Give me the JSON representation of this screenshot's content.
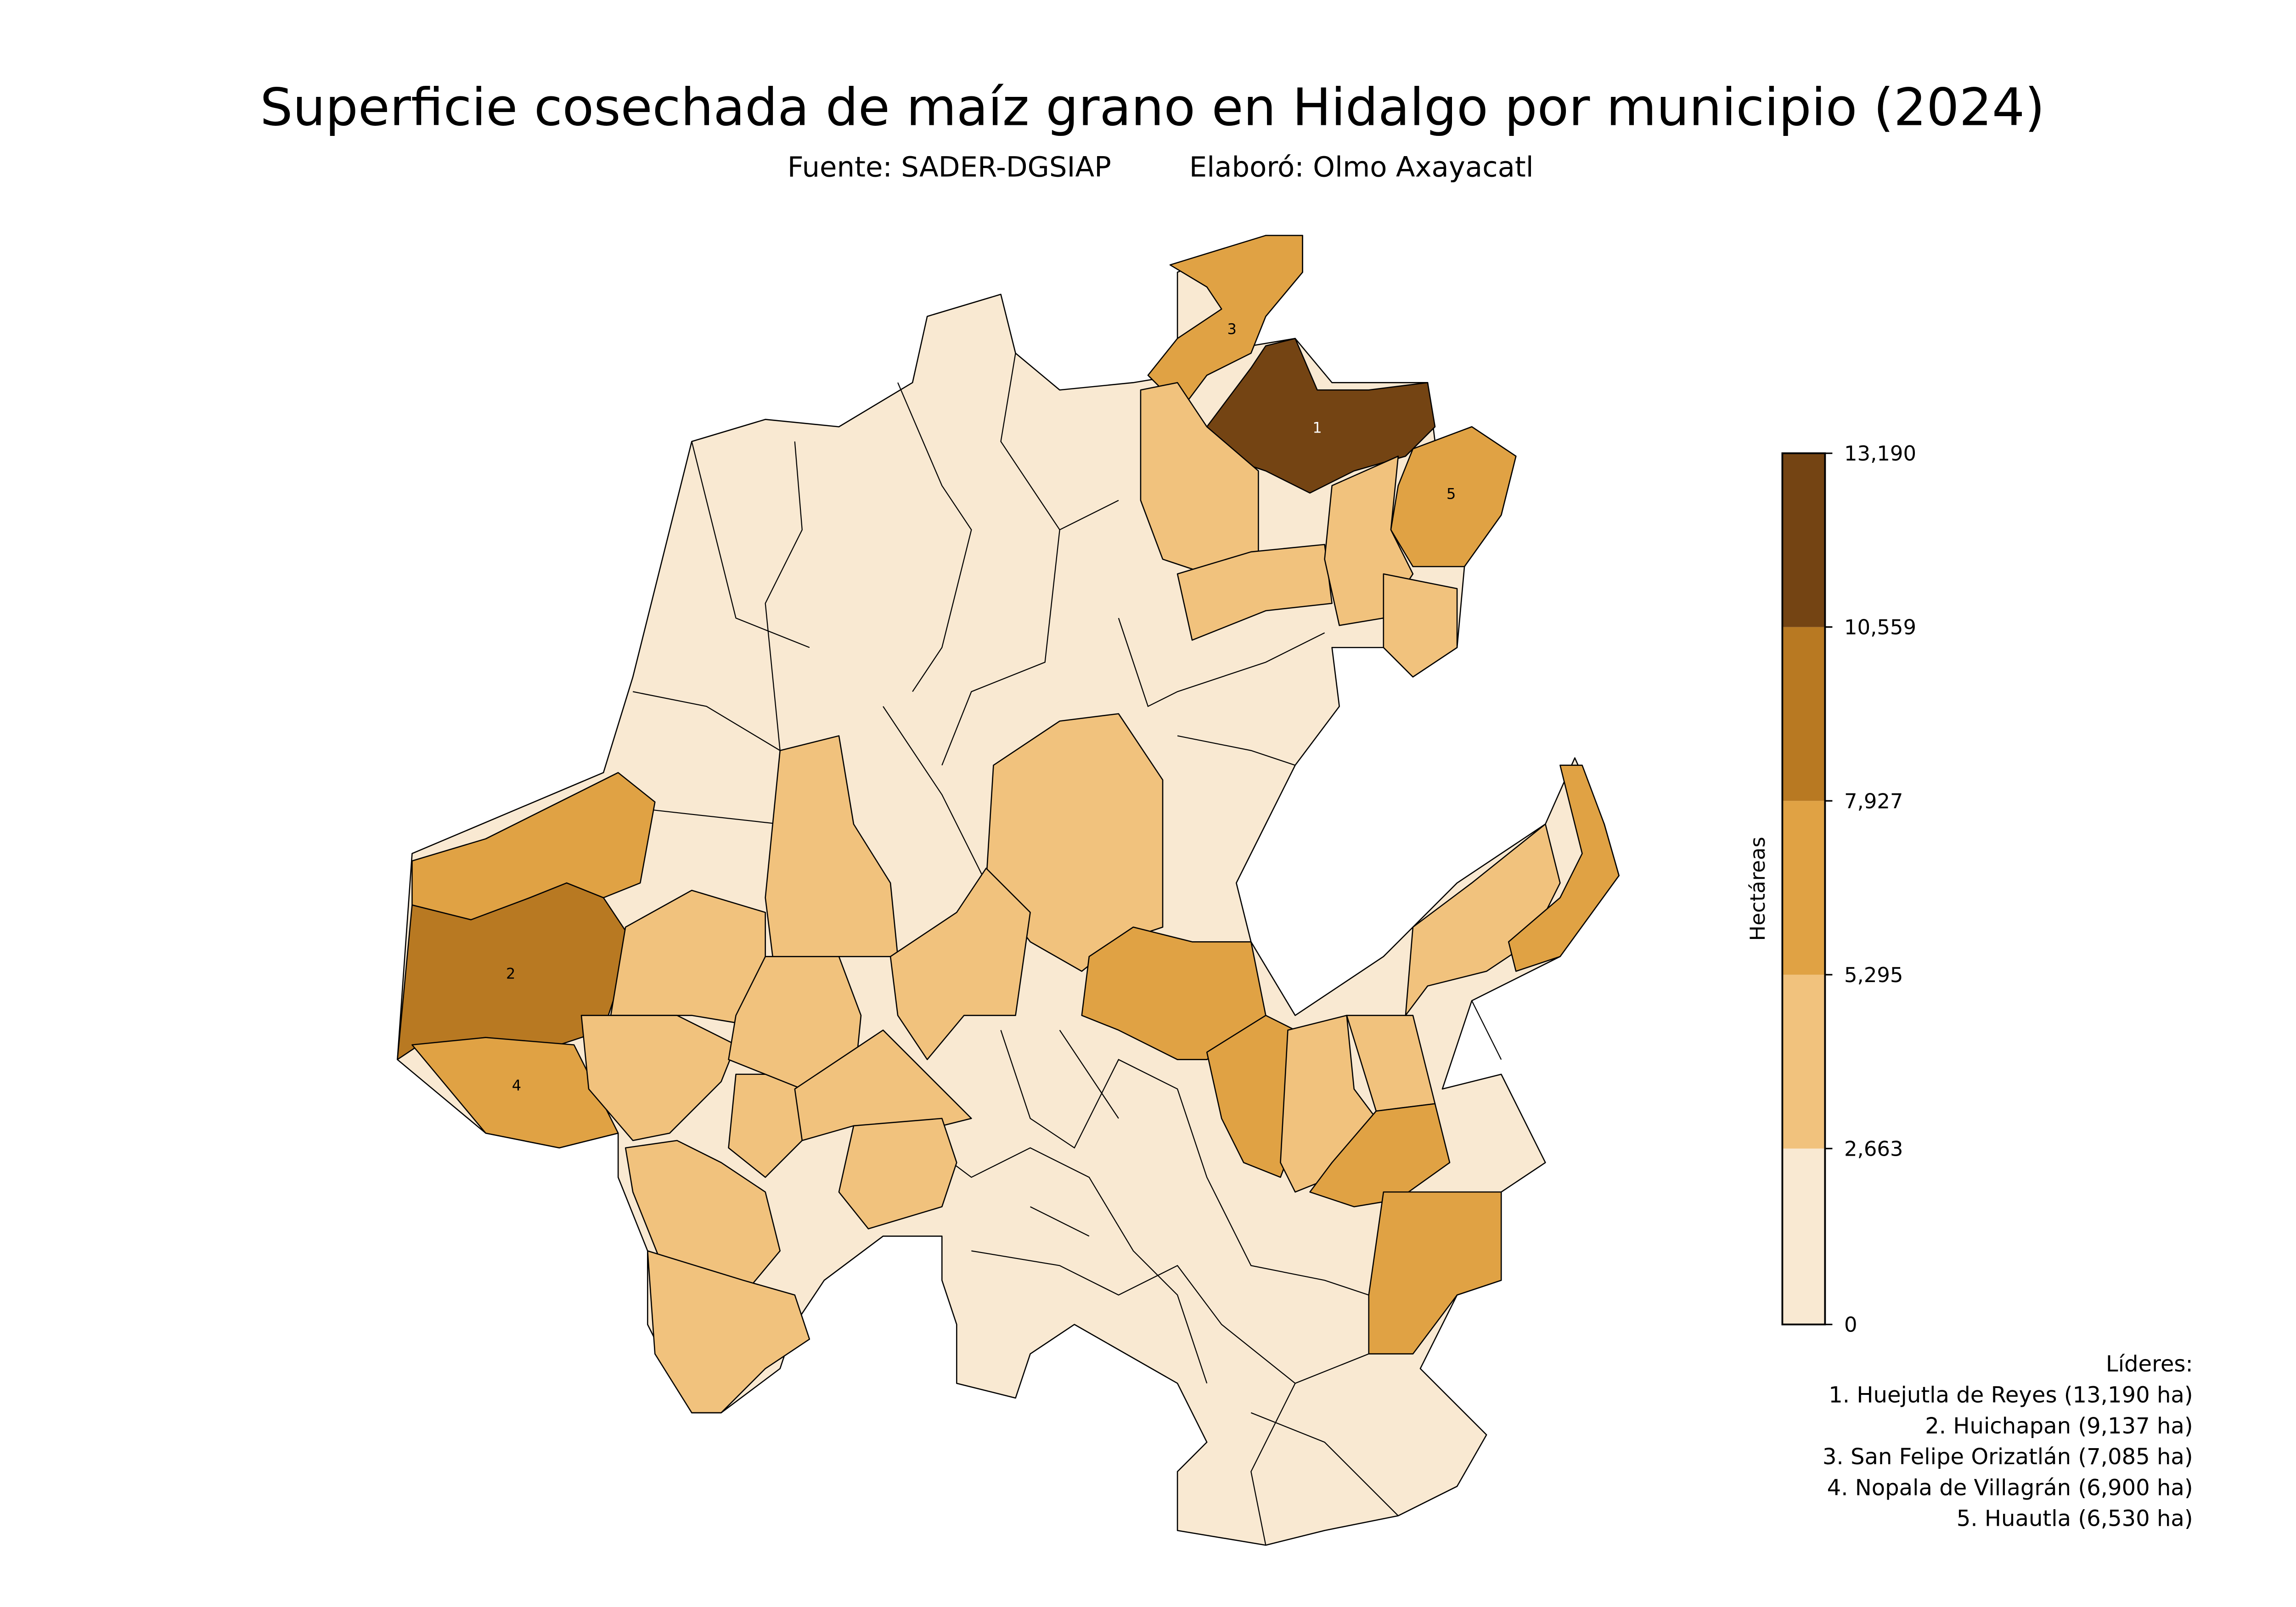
{
  "title": "Superficie cosechada de maíz grano en Hidalgo por municipio (2024)",
  "subtitle": {
    "source": "Fuente: SADER-DGSIAP",
    "author": "Elaboró: Olmo Axayacatl"
  },
  "chart_data": {
    "type": "choropleth",
    "title": "Superficie cosechada de maíz grano en Hidalgo por municipio (2024)",
    "colorbar": {
      "label": "Hectáreas",
      "ticks": [
        "0",
        "2,663",
        "5,295",
        "7,927",
        "10,559",
        "13,190"
      ],
      "tick_values": [
        0,
        2663,
        5295,
        7927,
        10559,
        13190
      ],
      "colors": [
        "#f9e9d2",
        "#f1c27d",
        "#e0a244",
        "#b87922",
        "#744413"
      ]
    },
    "map_labels": [
      "1",
      "2",
      "3",
      "4",
      "5"
    ],
    "leaders": {
      "heading": "Líderes:",
      "items": [
        {
          "rank": 1,
          "name": "Huejutla de Reyes",
          "value": 13190,
          "text": "1. Huejutla de Reyes (13,190 ha)"
        },
        {
          "rank": 2,
          "name": "Huichapan",
          "value": 9137,
          "text": "2. Huichapan (9,137 ha)"
        },
        {
          "rank": 3,
          "name": "San Felipe Orizatlán",
          "value": 7085,
          "text": "3. San Felipe Orizatlán (7,085 ha)"
        },
        {
          "rank": 4,
          "name": "Nopala de Villagrán",
          "value": 6900,
          "text": "4. Nopala de Villagrán (6,900 ha)"
        },
        {
          "rank": 5,
          "name": "Huautla",
          "value": 6530,
          "text": "5. Huautla (6,530 ha)"
        }
      ]
    }
  }
}
